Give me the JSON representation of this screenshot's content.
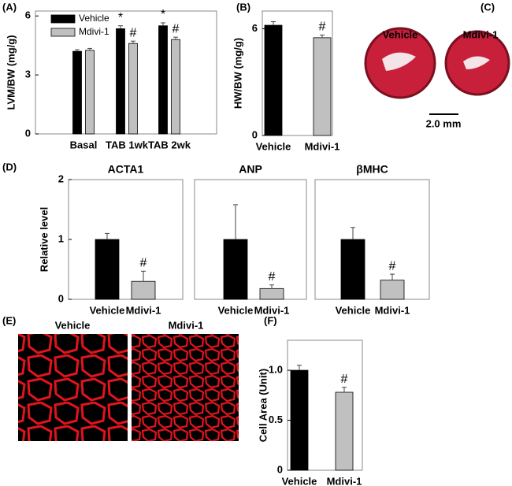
{
  "chart_data": [
    {
      "type": "bar",
      "ylabel": "LVM/BW (mg/g)",
      "categories": [
        "Basal",
        "TAB 1wk",
        "TAB 2wk"
      ],
      "series": [
        {
          "name": "Vehicle",
          "color": "#000000",
          "values": [
            4.2,
            5.35,
            5.5
          ],
          "errors": [
            0.08,
            0.15,
            0.15
          ],
          "markers": [
            null,
            "*",
            "*"
          ]
        },
        {
          "name": "Mdivi-1",
          "color": "#c0c0c0",
          "values": [
            4.25,
            4.6,
            4.8
          ],
          "errors": [
            0.1,
            0.12,
            0.12
          ],
          "markers": [
            null,
            "#",
            "#"
          ]
        }
      ],
      "ylim": [
        0,
        6.25
      ],
      "yticks": [
        0,
        3,
        6
      ],
      "legend": "upper left"
    },
    {
      "type": "bar",
      "ylabel": "HW/BW (mg/g)",
      "categories": [
        "Vehicle",
        "Mdivi-1"
      ],
      "values": [
        6.2,
        5.5
      ],
      "errors": [
        0.2,
        0.15
      ],
      "colors": [
        "#000000",
        "#c0c0c0"
      ],
      "markers": [
        null,
        "#"
      ],
      "ylim": [
        0,
        7
      ],
      "yticks": [
        0,
        6
      ]
    },
    {
      "type": "bar",
      "title": "ACTA1",
      "ylabel": "Relative level",
      "categories": [
        "Vehicle",
        "Mdivi-1"
      ],
      "values": [
        1,
        0.3
      ],
      "errors": [
        0.1,
        0.17
      ],
      "colors": [
        "#000000",
        "#c0c0c0"
      ],
      "markers": [
        null,
        "#"
      ],
      "ylim": [
        0,
        2
      ],
      "yticks": [
        0,
        1,
        2
      ]
    },
    {
      "type": "bar",
      "title": "ANP",
      "categories": [
        "Vehicle",
        "Mdivi-1"
      ],
      "values": [
        1,
        0.18
      ],
      "errors": [
        0.58,
        0.06
      ],
      "colors": [
        "#000000",
        "#c0c0c0"
      ],
      "markers": [
        null,
        "#"
      ],
      "ylim": [
        0,
        2
      ]
    },
    {
      "type": "bar",
      "title": "βMHC",
      "categories": [
        "Vehicle",
        "Mdivi-1"
      ],
      "values": [
        1,
        0.32
      ],
      "errors": [
        0.2,
        0.1
      ],
      "colors": [
        "#000000",
        "#c0c0c0"
      ],
      "markers": [
        null,
        "#"
      ],
      "ylim": [
        0,
        2
      ]
    },
    {
      "type": "bar",
      "ylabel": "Cell Area (Unit)",
      "categories": [
        "Vehicle",
        "Mdivi-1"
      ],
      "values": [
        1.0,
        0.78
      ],
      "errors": [
        0.05,
        0.05
      ],
      "colors": [
        "#000000",
        "#c0c0c0"
      ],
      "markers": [
        null,
        "#"
      ],
      "ylim": [
        0,
        1.3
      ],
      "yticks": [
        0,
        0.5,
        {
          "value": 1.0,
          "label": "1.0"
        }
      ]
    }
  ],
  "panel_labels": [
    "(A)",
    "(B)",
    "(C)",
    "(D)",
    "(E)",
    "(F)"
  ],
  "image_c": {
    "labels": [
      "Vehicle",
      "Mdivi-1"
    ],
    "scale_bar": "2.0 mm"
  },
  "image_e": {
    "labels": [
      "Vehicle",
      "Mdivi-1"
    ]
  }
}
